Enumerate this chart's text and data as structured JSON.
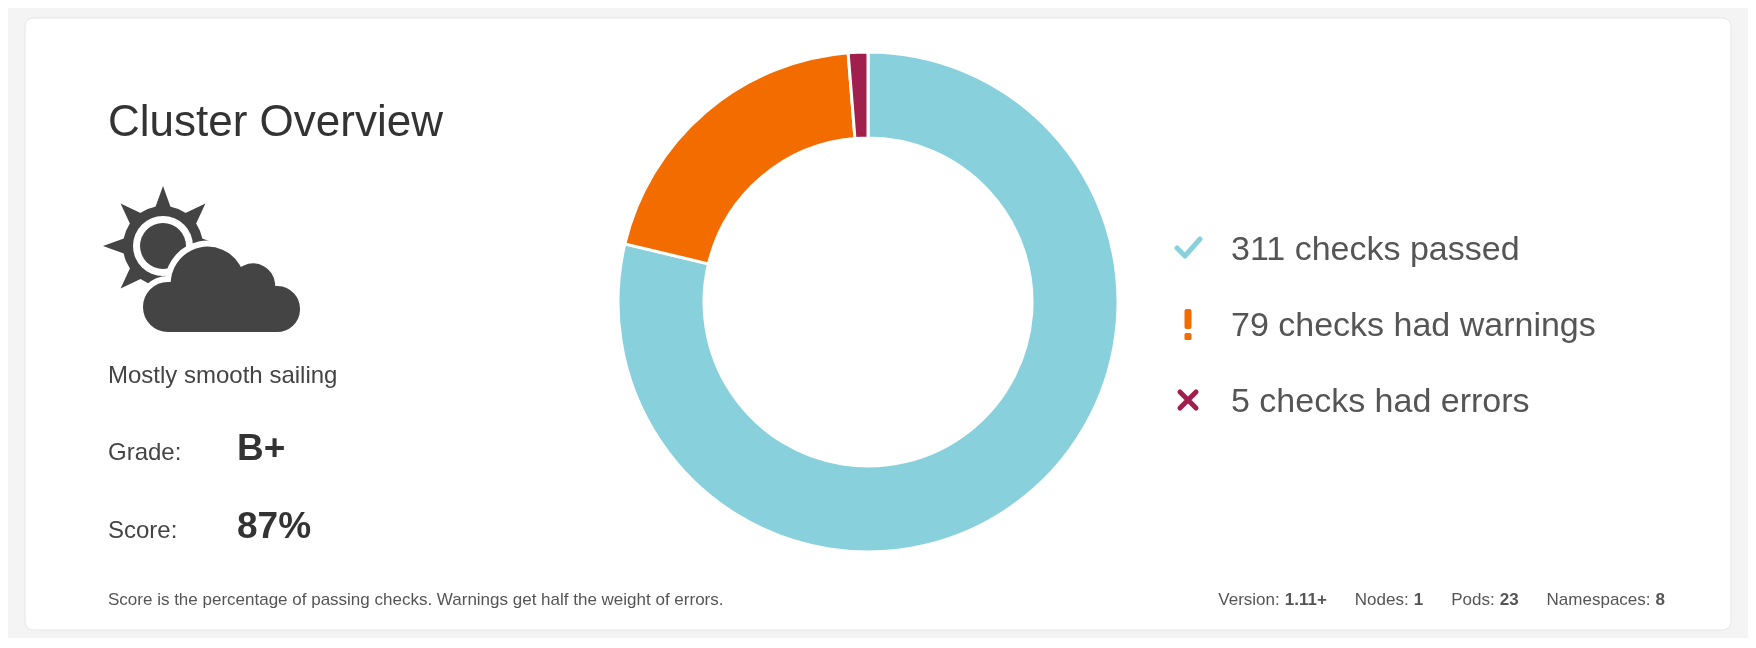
{
  "chart_data": {
    "type": "donut",
    "title": "Cluster Overview",
    "categories": [
      "311 checks passed",
      "79 checks had warnings",
      "5 checks had errors"
    ],
    "values": [
      311,
      79,
      5
    ],
    "colors": [
      "#88d1dc",
      "#f26c00",
      "#a11f4c"
    ],
    "legend": "right",
    "annotations": [
      "Mostly smooth sailing",
      "Grade:",
      "B+",
      "Score:",
      "87%",
      "Score is the percentage of passing checks. Warnings get half the weight of errors.",
      "Version:",
      "1.11+",
      "Nodes:",
      "1",
      "Pods:",
      "23",
      "Namespaces:",
      "8"
    ]
  }
}
